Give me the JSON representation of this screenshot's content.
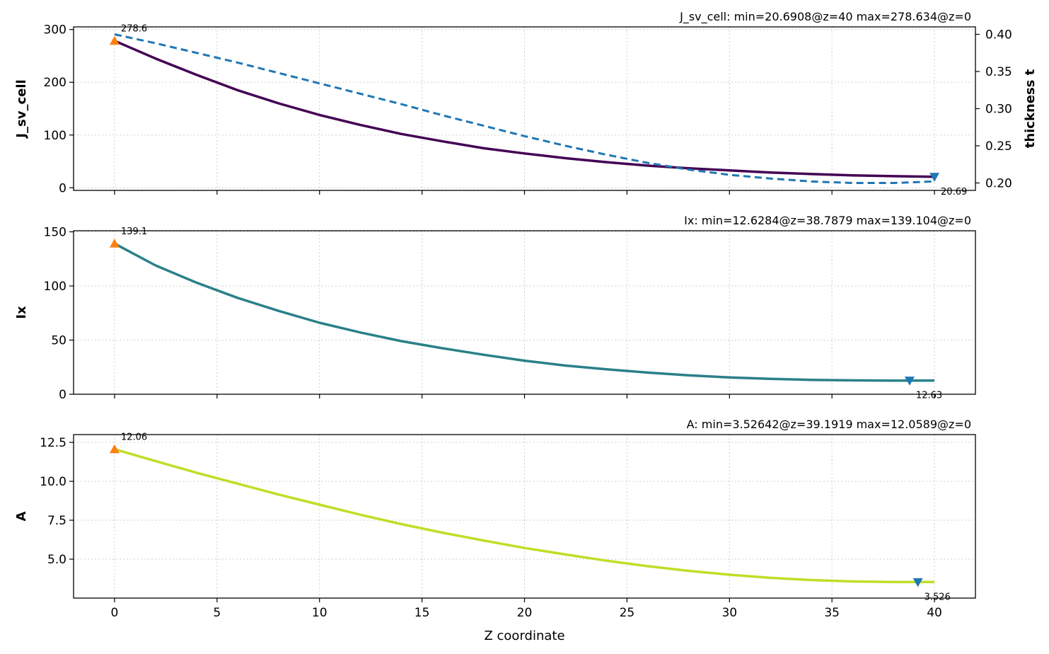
{
  "chart_data": [
    {
      "type": "line",
      "title": "J_sv_cell: min=20.6908@z=40  max=278.634@z=0",
      "xlabel": "",
      "ylabel": "J_sv_cell",
      "y2label": "thickness t",
      "xlim": [
        -2,
        42
      ],
      "ylim": [
        -5,
        305
      ],
      "y2lim": [
        0.19,
        0.41
      ],
      "grid": true,
      "xticks": [
        0,
        5,
        10,
        15,
        20,
        25,
        30,
        35,
        40
      ],
      "xtick_labels_visible": false,
      "yticks": [
        0,
        100,
        200,
        300
      ],
      "y2ticks": [
        0.2,
        0.25,
        0.3,
        0.35,
        0.4
      ],
      "y2tick_labels": [
        "0.20",
        "0.25",
        "0.30",
        "0.35",
        "0.40"
      ],
      "series": [
        {
          "axis": "left",
          "style": "solid",
          "color": "#440154",
          "x": [
            0,
            2,
            4,
            6,
            8,
            10,
            12,
            14,
            16,
            18,
            20,
            22,
            24,
            26,
            28,
            30,
            32,
            34,
            36,
            38,
            40
          ],
          "values": [
            278.6,
            245,
            214,
            185,
            160,
            138,
            119,
            102,
            88,
            75,
            65,
            56,
            48.5,
            42,
            37,
            33,
            29,
            26,
            23.5,
            22,
            20.7
          ]
        },
        {
          "axis": "right",
          "style": "dashed",
          "color": "#1f77b4",
          "x": [
            0,
            2,
            4,
            6,
            8,
            10,
            12,
            14,
            16,
            18,
            20,
            22,
            24,
            26,
            28,
            30,
            32,
            34,
            36,
            38,
            40
          ],
          "values": [
            0.4,
            0.388,
            0.375,
            0.362,
            0.348,
            0.334,
            0.32,
            0.306,
            0.291,
            0.277,
            0.263,
            0.25,
            0.238,
            0.227,
            0.218,
            0.211,
            0.206,
            0.202,
            0.2,
            0.2,
            0.202
          ]
        }
      ],
      "markers": [
        {
          "kind": "max",
          "x": 0,
          "y": 278.634,
          "label": "278.6",
          "color": "#ff7f0e"
        },
        {
          "kind": "min",
          "x": 40,
          "y": 20.6908,
          "label": "20.69",
          "color": "#1f77b4"
        }
      ]
    },
    {
      "type": "line",
      "title": "Ix: min=12.6284@z=38.7879  max=139.104@z=0",
      "xlabel": "",
      "ylabel": "Ix",
      "xlim": [
        -2,
        42
      ],
      "ylim": [
        0,
        151
      ],
      "grid": true,
      "xticks": [
        0,
        5,
        10,
        15,
        20,
        25,
        30,
        35,
        40
      ],
      "xtick_labels_visible": false,
      "yticks": [
        0,
        50,
        100,
        150
      ],
      "series": [
        {
          "axis": "left",
          "style": "solid",
          "color": "#2a8089",
          "x": [
            0,
            2,
            4,
            6,
            8,
            10,
            12,
            14,
            16,
            18,
            20,
            22,
            24,
            26,
            28,
            30,
            32,
            34,
            36,
            38,
            40
          ],
          "values": [
            139.1,
            119,
            103,
            89,
            77,
            66,
            57,
            49,
            42.5,
            36.5,
            31,
            26.5,
            23,
            20,
            17.5,
            15.5,
            14.2,
            13.3,
            12.8,
            12.63,
            12.7
          ]
        }
      ],
      "markers": [
        {
          "kind": "max",
          "x": 0,
          "y": 139.104,
          "label": "139.1",
          "color": "#ff7f0e"
        },
        {
          "kind": "min",
          "x": 38.7879,
          "y": 12.6284,
          "label": "12.63",
          "color": "#1f77b4"
        }
      ]
    },
    {
      "type": "line",
      "title": "A: min=3.52642@z=39.1919  max=12.0589@z=0",
      "xlabel": "Z coordinate",
      "ylabel": "A",
      "xlim": [
        -2,
        42
      ],
      "ylim": [
        2.5,
        13
      ],
      "grid": true,
      "xticks": [
        0,
        5,
        10,
        15,
        20,
        25,
        30,
        35,
        40
      ],
      "xtick_labels_visible": true,
      "yticks": [
        5.0,
        7.5,
        10.0,
        12.5
      ],
      "ytick_labels": [
        "5.0",
        "7.5",
        "10.0",
        "12.5"
      ],
      "series": [
        {
          "axis": "left",
          "style": "solid",
          "color": "#bddf26",
          "x": [
            0,
            2,
            4,
            6,
            8,
            10,
            12,
            14,
            16,
            18,
            20,
            22,
            24,
            26,
            28,
            30,
            32,
            34,
            36,
            38,
            40
          ],
          "values": [
            12.06,
            11.3,
            10.55,
            9.85,
            9.15,
            8.5,
            7.85,
            7.25,
            6.7,
            6.2,
            5.72,
            5.3,
            4.9,
            4.55,
            4.25,
            4.0,
            3.8,
            3.66,
            3.57,
            3.53,
            3.53
          ]
        }
      ],
      "markers": [
        {
          "kind": "max",
          "x": 0,
          "y": 12.0589,
          "label": "12.06",
          "color": "#ff7f0e"
        },
        {
          "kind": "min",
          "x": 39.1919,
          "y": 3.52642,
          "label": "3.526",
          "color": "#1f77b4"
        }
      ]
    }
  ]
}
